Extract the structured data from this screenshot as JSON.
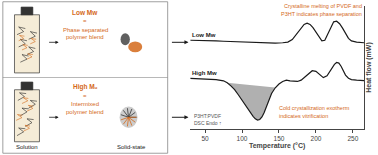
{
  "chart_data": {
    "type": "line",
    "xlabel": "Temperature (°C)",
    "ylabel": "Heat flow (mW)",
    "xlim": [
      30,
      265
    ],
    "ylim": [
      -3.2,
      6.5
    ],
    "xticks": [
      50,
      100,
      150,
      200,
      250
    ],
    "tick_labels": "x",
    "series": [
      {
        "name": "Low Mw",
        "color": "#1a1a1a",
        "x": [
          30,
          45,
          55,
          65,
          75,
          85,
          95,
          105,
          115,
          125,
          135,
          145,
          155,
          162,
          168,
          172,
          176,
          180,
          184,
          188,
          192,
          196,
          200,
          204,
          208,
          212,
          216,
          220,
          224,
          228,
          232,
          236,
          240,
          244,
          248,
          255,
          265
        ],
        "values": [
          3.8,
          3.8,
          3.78,
          3.75,
          3.72,
          3.7,
          3.68,
          3.65,
          3.63,
          3.6,
          3.58,
          3.58,
          3.6,
          3.65,
          3.85,
          4.15,
          4.5,
          4.8,
          5.05,
          5.15,
          5.05,
          4.8,
          4.45,
          4.05,
          3.75,
          3.8,
          4.3,
          4.85,
          5.25,
          5.3,
          5.1,
          4.75,
          4.3,
          3.95,
          3.75,
          3.65,
          3.6
        ]
      },
      {
        "name": "High Mw",
        "color": "#1a1a1a",
        "x": [
          30,
          45,
          55,
          65,
          75,
          80,
          85,
          90,
          95,
          100,
          105,
          110,
          115,
          118,
          121,
          124,
          127,
          130,
          133,
          136,
          140,
          145,
          150,
          155,
          160,
          165,
          170,
          175,
          180,
          185,
          190,
          195,
          200,
          205,
          210,
          215,
          220,
          225,
          228,
          231,
          234,
          237,
          240,
          244,
          248,
          255,
          265
        ],
        "values": [
          0.8,
          0.78,
          0.75,
          0.7,
          0.6,
          0.45,
          0.2,
          -0.1,
          -0.5,
          -0.95,
          -1.4,
          -1.85,
          -2.2,
          -2.4,
          -2.5,
          -2.45,
          -2.25,
          -1.9,
          -1.45,
          -0.95,
          -0.4,
          0.05,
          0.35,
          0.55,
          0.65,
          0.6,
          0.55,
          0.55,
          0.65,
          0.9,
          1.2,
          1.4,
          1.35,
          1.1,
          0.85,
          1.0,
          1.45,
          1.9,
          2.05,
          2.0,
          1.75,
          1.4,
          1.05,
          0.8,
          0.7,
          0.65,
          0.62
        ],
        "shade": {
          "x": [
            80,
            148
          ],
          "baseline": [
            0.45,
            0.05
          ],
          "color": "#b0b0b0"
        }
      }
    ],
    "annotations": [
      {
        "text": "Crystalline melting of PVDF and",
        "color": "#d4691a"
      },
      {
        "text": "P3HT indicates phase separation",
        "color": "#d4691a"
      },
      {
        "text": "Cold crystallization exotherm",
        "color": "#d4691a"
      },
      {
        "text": "indicates vitrification",
        "color": "#d4691a"
      },
      {
        "text": "P3HT:PVDF\nDSC Endo ↑",
        "color": "#555555"
      },
      {
        "text": "Solution",
        "color": "#1a1a1a"
      },
      {
        "text": "Solid-state",
        "color": "#1a1a1a"
      },
      {
        "text": "Low Mw",
        "color": "#d4691a"
      },
      {
        "text": "=",
        "color": "#d4691a"
      },
      {
        "text": "Phase separated",
        "color": "#d4691a"
      },
      {
        "text": "polymer blend",
        "color": "#d4691a"
      },
      {
        "text": "High Mᵤ",
        "color": "#d4691a"
      },
      {
        "text": "=",
        "color": "#d4691a"
      },
      {
        "text": "Intermixed",
        "color": "#d4691a"
      },
      {
        "text": "polymer blend",
        "color": "#d4691a"
      }
    ]
  }
}
